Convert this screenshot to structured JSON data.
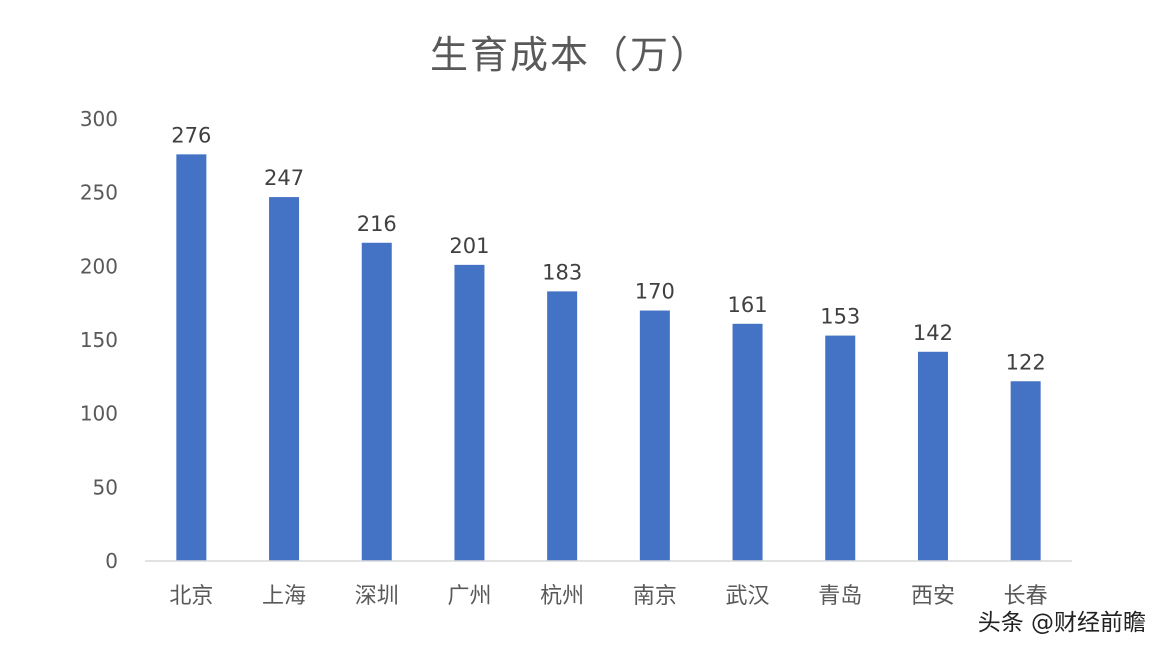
{
  "chart_data": {
    "type": "bar",
    "title": "生育成本（万）",
    "categories": [
      "北京",
      "上海",
      "深圳",
      "广州",
      "杭州",
      "南京",
      "武汉",
      "青岛",
      "西安",
      "长春"
    ],
    "values": [
      276,
      247,
      216,
      201,
      183,
      170,
      161,
      153,
      142,
      122
    ],
    "ylim": [
      0,
      300
    ],
    "yticks": [
      "0",
      "50",
      "100",
      "150",
      "200",
      "250",
      "300"
    ],
    "grid": false,
    "bar_color": "#4472C4",
    "data_labels": true
  },
  "watermark": "头条 @财经前瞻"
}
